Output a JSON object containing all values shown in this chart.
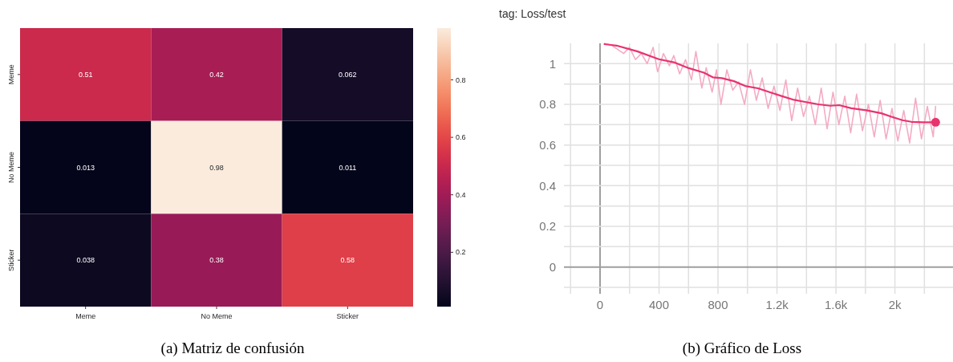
{
  "chart_data": [
    {
      "type": "heatmap",
      "categories": [
        "Meme",
        "No Meme",
        "Sticker"
      ],
      "y_categories": [
        "Meme",
        "No Meme",
        "Sticker"
      ],
      "cells": [
        [
          0.51,
          0.42,
          0.062
        ],
        [
          0.013,
          0.98,
          0.011
        ],
        [
          0.038,
          0.38,
          0.58
        ]
      ],
      "data_labels": true,
      "clim": [
        0.011,
        0.98
      ],
      "cticks": [
        0.2,
        0.4,
        0.6,
        0.8
      ],
      "annotations": [
        "(a) Matriz de confusión"
      ]
    },
    {
      "type": "line",
      "title": "tag: Loss/test",
      "xlim": [
        -245,
        2394
      ],
      "ylim": [
        -0.1,
        1.1
      ],
      "xticks": [
        {
          "value": -200,
          "label": null
        },
        0,
        {
          "value": 200,
          "label": null
        },
        400,
        {
          "value": 600,
          "label": null
        },
        800,
        {
          "value": 1000,
          "label": null
        },
        {
          "value": 1200,
          "label": "1.2k"
        },
        {
          "value": 1400,
          "label": null
        },
        {
          "value": 1600,
          "label": "1.6k"
        },
        {
          "value": 1800,
          "label": null
        },
        {
          "value": 2000,
          "label": "2k"
        },
        {
          "value": 2200,
          "label": null
        }
      ],
      "yticks": [
        {
          "value": -0.1,
          "label": null
        },
        0,
        {
          "value": 0.1,
          "label": null
        },
        0.2,
        {
          "value": 0.3,
          "label": null
        },
        0.4,
        {
          "value": 0.5,
          "label": null
        },
        0.6,
        {
          "value": 0.7,
          "label": null
        },
        0.8,
        {
          "value": 0.9,
          "label": null
        },
        1
      ],
      "grid": true,
      "line_style": "solid",
      "marker": "none",
      "series": [
        {
          "color": "#f4abc5",
          "x": [
            30,
            80,
            120,
            160,
            200,
            240,
            280,
            320,
            360,
            390,
            430,
            470,
            500,
            540,
            580,
            620,
            650,
            690,
            720,
            760,
            790,
            820,
            860,
            900,
            940,
            980,
            1020,
            1060,
            1100,
            1140,
            1180,
            1220,
            1260,
            1300,
            1340,
            1380,
            1420,
            1460,
            1500,
            1540,
            1580,
            1620,
            1660,
            1700,
            1740,
            1780,
            1820,
            1860,
            1900,
            1940,
            1980,
            2020,
            2060,
            2100,
            2140,
            2180,
            2220,
            2260,
            2276
          ],
          "values": [
            1.1,
            1.09,
            1.07,
            1.05,
            1.08,
            1.02,
            1.05,
            1.0,
            1.08,
            0.96,
            1.05,
            0.99,
            1.04,
            0.95,
            1.02,
            0.92,
            1.06,
            0.88,
            0.98,
            0.86,
            0.97,
            0.8,
            0.97,
            0.87,
            0.91,
            0.8,
            0.97,
            0.82,
            0.93,
            0.78,
            0.89,
            0.77,
            0.92,
            0.72,
            0.88,
            0.74,
            0.84,
            0.7,
            0.88,
            0.68,
            0.86,
            0.7,
            0.84,
            0.66,
            0.85,
            0.67,
            0.8,
            0.64,
            0.82,
            0.63,
            0.78,
            0.62,
            0.77,
            0.61,
            0.83,
            0.63,
            0.79,
            0.64,
            0.79
          ]
        },
        {
          "color": "#e8336e",
          "x": [
            30,
            112,
            255,
            398,
            500,
            602,
            704,
            765,
            827,
            908,
            990,
            1071,
            1153,
            1235,
            1316,
            1398,
            1480,
            1561,
            1622,
            1704,
            1806,
            1908,
            1969,
            2051,
            2112,
            2194,
            2276
          ],
          "values": [
            1.096,
            1.089,
            1.06,
            1.022,
            1.007,
            0.978,
            0.956,
            0.933,
            0.929,
            0.914,
            0.889,
            0.879,
            0.859,
            0.84,
            0.822,
            0.811,
            0.8,
            0.793,
            0.796,
            0.781,
            0.771,
            0.756,
            0.741,
            0.722,
            0.714,
            0.712,
            0.712
          ]
        },
        {
          "type": "scatter",
          "marker": "circle",
          "color": "#e8336e",
          "x": [
            2276
          ],
          "values": [
            0.712
          ]
        }
      ],
      "annotations": [
        "(b) Gráfico de Loss"
      ]
    }
  ]
}
